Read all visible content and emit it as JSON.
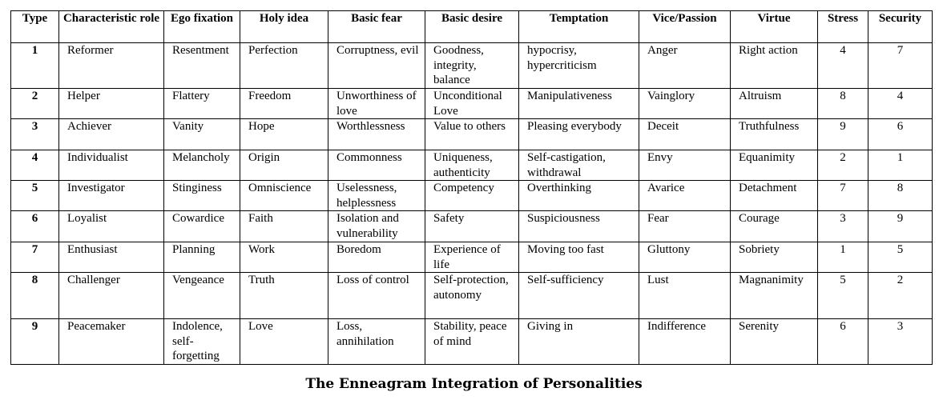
{
  "table": {
    "headers": [
      "Type",
      "Characteristic role",
      "Ego fixation",
      "Holy idea",
      "Basic fear",
      "Basic desire",
      "Temptation",
      "Vice/Passion",
      "Virtue",
      "Stress",
      "Security"
    ],
    "rows": [
      [
        "1",
        "Reformer",
        "Resentment",
        "Perfection",
        "Corruptness, evil",
        "Goodness, integrity, balance",
        "hypocrisy, hypercriticism",
        "Anger",
        "Right action",
        "4",
        "7"
      ],
      [
        "2",
        "Helper",
        "Flattery",
        "Freedom",
        "Unworthiness of love",
        "Unconditional Love",
        "Manipulativeness",
        "Vainglory",
        "Altruism",
        "8",
        "4"
      ],
      [
        "3",
        "Achiever",
        "Vanity",
        "Hope",
        "Worthlessness",
        "Value to others",
        "Pleasing everybody",
        "Deceit",
        "Truthfulness",
        "9",
        "6"
      ],
      [
        "4",
        "Individualist",
        "Melancholy",
        "Origin",
        "Commonness",
        "Uniqueness, authenticity",
        "Self-castigation, withdrawal",
        "Envy",
        "Equanimity",
        "2",
        "1"
      ],
      [
        "5",
        "Investigator",
        "Stinginess",
        "Omniscience",
        "Uselessness, helplessness",
        "Competency",
        "Overthinking",
        "Avarice",
        "Detachment",
        "7",
        "8"
      ],
      [
        "6",
        "Loyalist",
        "Cowardice",
        "Faith",
        "Isolation and vulnerability",
        "Safety",
        "Suspiciousness",
        "Fear",
        "Courage",
        "3",
        "9"
      ],
      [
        "7",
        "Enthusiast",
        "Planning",
        "Work",
        "Boredom",
        "Experience of life",
        "Moving too fast",
        "Gluttony",
        "Sobriety",
        "1",
        "5"
      ],
      [
        "8",
        "Challenger",
        "Vengeance",
        "Truth",
        "Loss of control",
        "Self-protection, autonomy",
        "Self-sufficiency",
        "Lust",
        "Magnanimity",
        "5",
        "2"
      ],
      [
        "9",
        "Peacemaker",
        "Indolence, self-forgetting",
        "Love",
        "Loss, annihilation",
        "Stability, peace of mind",
        "Giving in",
        "Indifference",
        "Serenity",
        "6",
        "3"
      ]
    ]
  },
  "caption": "The Enneagram Integration of Personalities"
}
